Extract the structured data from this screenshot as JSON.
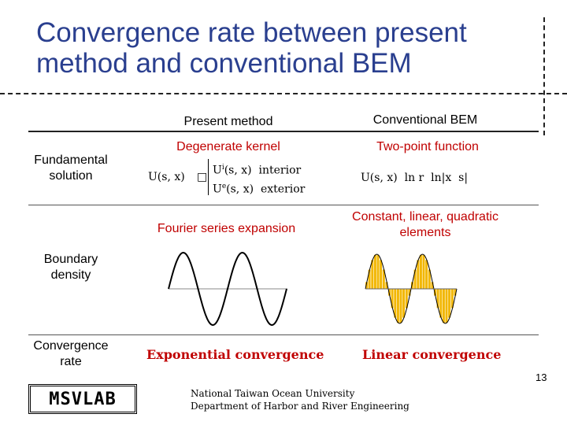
{
  "title": "Convergence rate between present method and conventional BEM",
  "columns": {
    "present": "Present method",
    "conventional": "Conventional BEM"
  },
  "rows": {
    "fundamental": {
      "label": "Fundamental solution",
      "present_title": "Degenerate kernel",
      "present_formula_lhs": "U(s, x)",
      "present_formula_interior_term": "U",
      "present_formula_interior_sup": "i",
      "present_formula_interior_arg": "(s, x)",
      "present_formula_interior_word": "interior",
      "present_formula_exterior_term": "U",
      "present_formula_exterior_sup": "e",
      "present_formula_exterior_arg": "(s, x)",
      "present_formula_exterior_word": "exterior",
      "conventional_title": "Two-point function",
      "conventional_formula": "U(s, x)  ln r  ln|x  s|"
    },
    "boundary": {
      "label": "Boundary density",
      "present_title": "Fourier series expansion",
      "conventional_title": "Constant, linear, quadratic elements"
    },
    "convergence": {
      "label": "Convergence rate",
      "present": "Exponential convergence",
      "conventional": "Linear convergence"
    }
  },
  "footer": {
    "logo": "MSVLAB",
    "line1": "National Taiwan Ocean University",
    "line2": "Department of Harbor and River Engineering",
    "page": "13"
  },
  "colors": {
    "title": "#2a3f8f",
    "accent_red": "#c00000",
    "element_fill": "#f2b705"
  }
}
